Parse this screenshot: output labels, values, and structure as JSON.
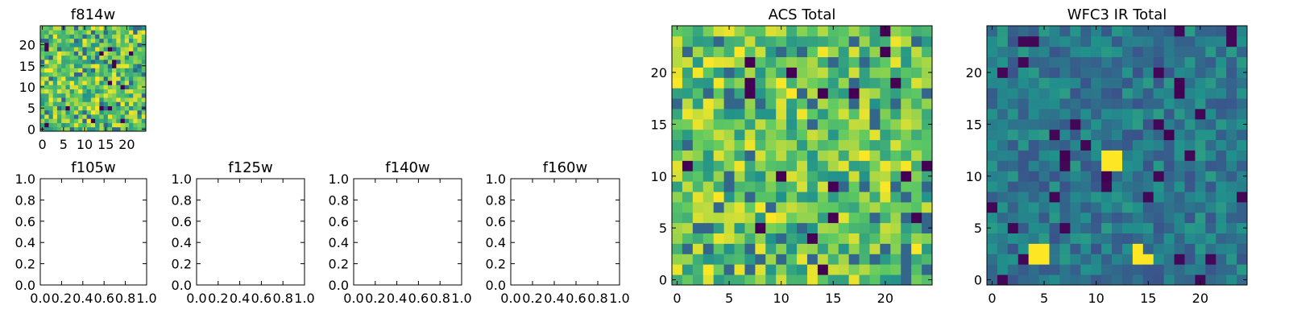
{
  "chart_data": [
    {
      "type": "heatmap",
      "title": "f814w",
      "xticks": [
        "0",
        "5",
        "10",
        "15",
        "20"
      ],
      "yticks": [
        "0",
        "5",
        "10",
        "15",
        "20"
      ],
      "xlim": [
        -0.5,
        24.5
      ],
      "ylim": [
        -0.5,
        24.5
      ],
      "rows": 25,
      "cols": 25,
      "colormap": "viridis",
      "value_range": [
        0,
        1
      ],
      "seed": 11,
      "style": "bright"
    },
    {
      "type": "empty",
      "title": "f105w",
      "xticks": [
        "0.0",
        "0.2",
        "0.4",
        "0.6",
        "0.8",
        "1.0"
      ],
      "yticks": [
        "0.0",
        "0.2",
        "0.4",
        "0.6",
        "0.8",
        "1.0"
      ],
      "xlim": [
        0,
        1
      ],
      "ylim": [
        0,
        1
      ]
    },
    {
      "type": "empty",
      "title": "f125w",
      "xticks": [
        "0.0",
        "0.2",
        "0.4",
        "0.6",
        "0.8",
        "1.0"
      ],
      "yticks": [
        "0.0",
        "0.2",
        "0.4",
        "0.6",
        "0.8",
        "1.0"
      ],
      "xlim": [
        0,
        1
      ],
      "ylim": [
        0,
        1
      ]
    },
    {
      "type": "empty",
      "title": "f140w",
      "xticks": [
        "0.0",
        "0.2",
        "0.4",
        "0.6",
        "0.8",
        "1.0"
      ],
      "yticks": [
        "0.0",
        "0.2",
        "0.4",
        "0.6",
        "0.8",
        "1.0"
      ],
      "xlim": [
        0,
        1
      ],
      "ylim": [
        0,
        1
      ]
    },
    {
      "type": "empty",
      "title": "f160w",
      "xticks": [
        "0.0",
        "0.2",
        "0.4",
        "0.6",
        "0.8",
        "1.0"
      ],
      "yticks": [
        "0.0",
        "0.2",
        "0.4",
        "0.6",
        "0.8",
        "1.0"
      ],
      "xlim": [
        0,
        1
      ],
      "ylim": [
        0,
        1
      ]
    },
    {
      "type": "heatmap",
      "title": "ACS Total",
      "xticks": [
        "0",
        "5",
        "10",
        "15",
        "20"
      ],
      "yticks": [
        "0",
        "5",
        "10",
        "15",
        "20"
      ],
      "xlim": [
        -0.5,
        24.5
      ],
      "ylim": [
        -0.5,
        24.5
      ],
      "rows": 25,
      "cols": 25,
      "colormap": "viridis",
      "value_range": [
        0,
        1
      ],
      "seed": 23,
      "style": "bright"
    },
    {
      "type": "heatmap",
      "title": "WFC3 IR Total",
      "xticks": [
        "0",
        "5",
        "10",
        "15",
        "20"
      ],
      "yticks": [
        "0",
        "5",
        "10",
        "15",
        "20"
      ],
      "xlim": [
        -0.5,
        24.5
      ],
      "ylim": [
        -0.5,
        24.5
      ],
      "rows": 25,
      "cols": 25,
      "colormap": "viridis",
      "value_range": [
        0,
        1
      ],
      "seed": 37,
      "style": "dim",
      "hot_pixels": [
        [
          4,
          3
        ],
        [
          5,
          3
        ],
        [
          4,
          2
        ],
        [
          5,
          2
        ],
        [
          11,
          12
        ],
        [
          12,
          12
        ],
        [
          11,
          11
        ],
        [
          12,
          11
        ],
        [
          14,
          3
        ],
        [
          15,
          2
        ],
        [
          14,
          2
        ]
      ],
      "dark_pixels": [
        [
          18,
          19
        ],
        [
          18,
          18
        ],
        [
          11,
          10
        ],
        [
          17,
          14
        ],
        [
          7,
          12
        ]
      ]
    }
  ]
}
